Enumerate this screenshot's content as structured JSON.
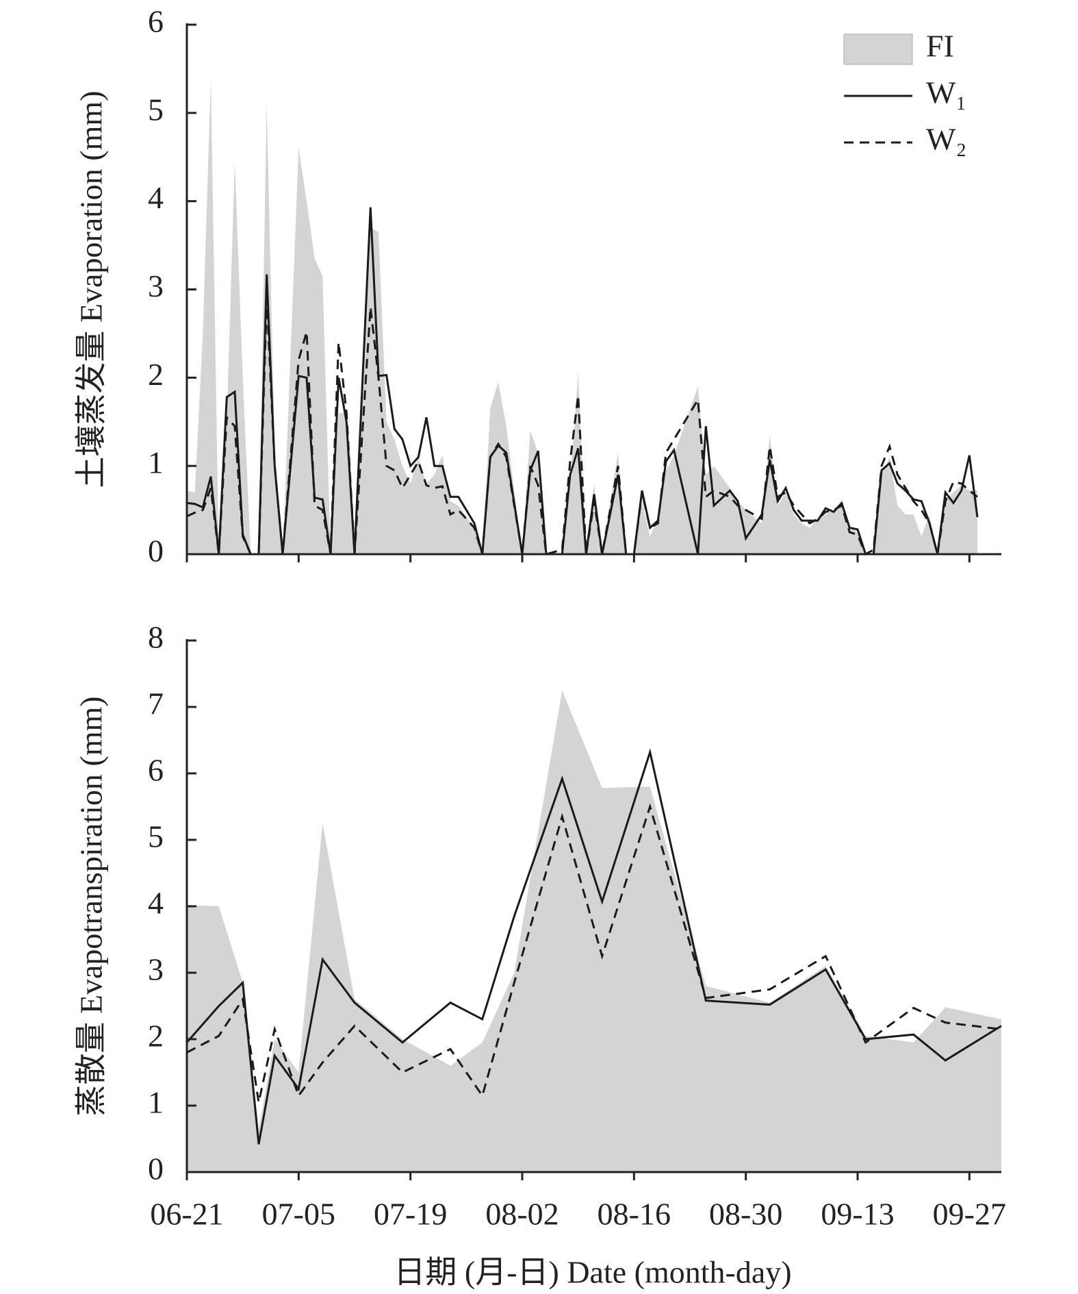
{
  "chart_data": [
    {
      "type": "line",
      "y_label": "土壤蒸发量 Evaporation (mm)",
      "legend": "upper right",
      "x": [
        "06-21",
        "06-22",
        "06-23",
        "06-24",
        "06-25",
        "06-26",
        "06-27",
        "06-28",
        "06-29",
        "06-30",
        "07-01",
        "07-02",
        "07-03",
        "07-05",
        "07-06",
        "07-07",
        "07-08",
        "07-09",
        "07-10",
        "07-11",
        "07-12",
        "07-14",
        "07-15",
        "07-16",
        "07-17",
        "07-18",
        "07-19",
        "07-20",
        "07-21",
        "07-22",
        "07-23",
        "07-24",
        "07-25",
        "07-27",
        "07-28",
        "07-29",
        "07-30",
        "07-31",
        "08-02",
        "08-03",
        "08-04",
        "08-05",
        "08-07",
        "08-08",
        "08-09",
        "08-10",
        "08-11",
        "08-12",
        "08-14",
        "08-15",
        "08-16",
        "08-17",
        "08-18",
        "08-19",
        "08-20",
        "08-21",
        "08-24",
        "08-25",
        "08-26",
        "08-28",
        "08-29",
        "08-30",
        "09-01",
        "09-02",
        "09-03",
        "09-04",
        "09-05",
        "09-06",
        "09-07",
        "09-08",
        "09-09",
        "09-10",
        "09-11",
        "09-12",
        "09-13",
        "09-14",
        "09-15",
        "09-16",
        "09-17",
        "09-18",
        "09-19",
        "09-20",
        "09-21",
        "09-22",
        "09-23",
        "09-24",
        "09-25",
        "09-26",
        "09-27",
        "09-28"
      ],
      "series": [
        {
          "name": "FI",
          "color": "#d4d4d4",
          "style": "area",
          "values": [
            0.72,
            0.7,
            2.5,
            5.38,
            0,
            1.5,
            4.45,
            2.0,
            0,
            0,
            5.1,
            1.2,
            0,
            4.6,
            4.0,
            3.35,
            3.15,
            0,
            1.6,
            1.6,
            0,
            3.7,
            3.65,
            1.5,
            1.3,
            1.0,
            0.8,
            1.1,
            0.8,
            0.9,
            1.12,
            0.6,
            0.55,
            0.3,
            0,
            1.65,
            1.95,
            1.45,
            0,
            1.4,
            1.15,
            0,
            0,
            0.8,
            2.05,
            0,
            0.8,
            0,
            1.15,
            0,
            0,
            0.6,
            0.2,
            0.4,
            0.95,
            1.12,
            1.9,
            0.9,
            1.0,
            0.75,
            0.6,
            0.5,
            0.35,
            1.35,
            0.55,
            0.7,
            0.45,
            0.35,
            0.3,
            0.4,
            0.45,
            0.5,
            0.55,
            0.3,
            0.25,
            0,
            0,
            0.9,
            1.1,
            0.55,
            0.45,
            0.45,
            0.2,
            0.45,
            0,
            0.6,
            0.7,
            0.78,
            0.72,
            0.72
          ]
        },
        {
          "name": "W₁",
          "color": "#1a1a1a",
          "style": "solid",
          "values": [
            0.58,
            0.57,
            0.53,
            0.88,
            0,
            1.78,
            1.84,
            0.22,
            0,
            0,
            3.17,
            1.0,
            0,
            2.02,
            2.0,
            0.64,
            0.62,
            0,
            2.0,
            1.5,
            0,
            3.93,
            2.02,
            2.03,
            1.42,
            1.3,
            1.0,
            1.1,
            1.55,
            1.0,
            1.0,
            0.65,
            0.65,
            0.35,
            0,
            1.1,
            1.23,
            1.15,
            0,
            0.95,
            1.17,
            0,
            0,
            0.9,
            1.2,
            0,
            0.68,
            0,
            0.9,
            0,
            0,
            0.72,
            0.3,
            0.38,
            1.05,
            1.18,
            0,
            1.45,
            0.55,
            0.72,
            0.6,
            0.18,
            0.45,
            1.07,
            0.6,
            0.75,
            0.5,
            0.38,
            0.38,
            0.38,
            0.52,
            0.48,
            0.58,
            0.3,
            0.28,
            0,
            0,
            0.95,
            1.03,
            0.8,
            0.72,
            0.62,
            0.6,
            0.35,
            0,
            0.7,
            0.58,
            0.72,
            1.12,
            0.42
          ]
        },
        {
          "name": "W₂",
          "color": "#1a1a1a",
          "style": "dashed",
          "values": [
            0.43,
            0.47,
            0.5,
            0.75,
            0,
            1.55,
            1.45,
            0.2,
            0,
            0,
            2.9,
            1.0,
            0,
            2.2,
            2.52,
            0.55,
            0.5,
            0,
            2.4,
            1.6,
            0,
            2.8,
            2.0,
            1.0,
            0.95,
            0.75,
            0.9,
            1.05,
            0.78,
            0.75,
            0.77,
            0.45,
            0.5,
            0.3,
            0,
            1.1,
            1.25,
            1.1,
            0,
            1.0,
            0.78,
            0,
            0.05,
            1.05,
            1.8,
            0,
            0.6,
            0,
            1.0,
            0,
            0,
            0.7,
            0.3,
            0.35,
            1.15,
            1.3,
            1.75,
            0.65,
            0.72,
            0.65,
            0.55,
            0.5,
            0.4,
            1.22,
            0.65,
            0.7,
            0.55,
            0.45,
            0.35,
            0.4,
            0.48,
            0.5,
            0.55,
            0.25,
            0.22,
            0,
            0.05,
            1.0,
            1.22,
            0.9,
            0.75,
            0.6,
            0.5,
            0.35,
            0,
            0.6,
            0.82,
            0.8,
            0.72,
            0.65
          ]
        }
      ],
      "xlim": [
        "06-21",
        "10-01"
      ],
      "xticks": [
        "06-21",
        "07-05",
        "07-19",
        "08-02",
        "08-16",
        "08-30",
        "09-13",
        "09-27"
      ],
      "ylim": [
        0,
        6
      ],
      "yticks": [
        0,
        1,
        2,
        3,
        4,
        5,
        6
      ]
    },
    {
      "type": "line",
      "y_label": "蒸散量 Evapotranspiration (mm)",
      "x_label": "日期 (月-日) Date (month-day)",
      "x": [
        "06-21",
        "06-25",
        "06-28",
        "06-30",
        "07-02",
        "07-05",
        "07-08",
        "07-12",
        "07-18",
        "07-24",
        "07-28",
        "08-01",
        "08-07",
        "08-12",
        "08-18",
        "08-25",
        "09-02",
        "09-09",
        "09-14",
        "09-20",
        "09-24",
        "10-01"
      ],
      "series": [
        {
          "color": "#d4d4d4",
          "style": "area",
          "values": [
            4.02,
            4.0,
            2.85,
            0.65,
            2.0,
            1.5,
            5.25,
            2.6,
            2.0,
            1.6,
            1.95,
            3.0,
            7.25,
            5.78,
            5.8,
            2.8,
            2.55,
            3.1,
            2.05,
            1.95,
            2.48,
            2.3
          ]
        },
        {
          "color": "#1a1a1a",
          "style": "solid",
          "values": [
            1.95,
            2.5,
            2.85,
            0.42,
            1.75,
            1.25,
            3.2,
            2.55,
            1.95,
            2.55,
            2.3,
            3.85,
            5.92,
            4.07,
            6.32,
            2.58,
            2.52,
            3.05,
            2.0,
            2.07,
            1.68,
            2.2
          ]
        },
        {
          "color": "#1a1a1a",
          "style": "dashed",
          "values": [
            1.8,
            2.05,
            2.6,
            1.05,
            2.15,
            1.15,
            1.65,
            2.2,
            1.5,
            1.85,
            1.15,
            2.85,
            5.35,
            3.25,
            5.5,
            2.62,
            2.75,
            3.25,
            1.95,
            2.47,
            2.25,
            2.15
          ]
        }
      ],
      "xlim": [
        "06-21",
        "10-01"
      ],
      "xticks": [
        "06-21",
        "07-05",
        "07-19",
        "08-02",
        "08-16",
        "08-30",
        "09-13",
        "09-27"
      ],
      "ylim": [
        0,
        8
      ],
      "yticks": [
        0,
        1,
        2,
        3,
        4,
        5,
        6,
        7,
        8
      ]
    }
  ]
}
